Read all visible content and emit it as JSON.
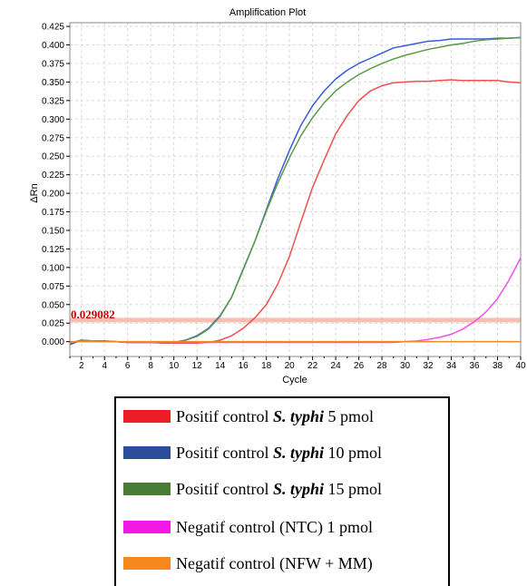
{
  "chart_data": {
    "type": "line",
    "title": "Amplification Plot",
    "xlabel": "Cycle",
    "ylabel": "ΔRn",
    "xlim": [
      1,
      40
    ],
    "ylim": [
      -0.02,
      0.43
    ],
    "x_ticks": [
      2,
      4,
      6,
      8,
      10,
      12,
      14,
      16,
      18,
      20,
      22,
      24,
      26,
      28,
      30,
      32,
      34,
      36,
      38,
      40
    ],
    "y_ticks": [
      "0.000",
      "0.025",
      "0.050",
      "0.075",
      "0.100",
      "0.125",
      "0.150",
      "0.175",
      "0.200",
      "0.225",
      "0.250",
      "0.275",
      "0.300",
      "0.325",
      "0.350",
      "0.375",
      "0.400",
      "0.425"
    ],
    "grid": true,
    "threshold": {
      "value": 0.029082,
      "label": "0.029082",
      "color": "#f4b4a4"
    },
    "x": [
      1,
      2,
      3,
      4,
      5,
      6,
      7,
      8,
      9,
      10,
      11,
      12,
      13,
      14,
      15,
      16,
      17,
      18,
      19,
      20,
      21,
      22,
      23,
      24,
      25,
      26,
      27,
      28,
      29,
      30,
      31,
      32,
      33,
      34,
      35,
      36,
      37,
      38,
      39,
      40
    ],
    "series": [
      {
        "name": "Positif control S. typhi 5 pmol",
        "color": "#f05050",
        "values": [
          -0.002,
          0.002,
          0.001,
          0.0,
          0.0,
          -0.001,
          -0.001,
          -0.001,
          -0.002,
          -0.002,
          -0.002,
          -0.002,
          -0.001,
          0.002,
          0.008,
          0.018,
          0.032,
          0.05,
          0.078,
          0.115,
          0.162,
          0.208,
          0.245,
          0.28,
          0.305,
          0.325,
          0.338,
          0.345,
          0.349,
          0.35,
          0.351,
          0.351,
          0.352,
          0.353,
          0.352,
          0.352,
          0.352,
          0.352,
          0.35,
          0.349
        ]
      },
      {
        "name": "Positif control S. typhi 10 pmol",
        "color": "#3a5bd8",
        "values": [
          -0.004,
          0.002,
          0.001,
          0.001,
          0.0,
          -0.001,
          -0.001,
          -0.001,
          -0.001,
          -0.001,
          0.002,
          0.008,
          0.018,
          0.035,
          0.06,
          0.098,
          0.135,
          0.178,
          0.22,
          0.258,
          0.292,
          0.318,
          0.338,
          0.354,
          0.366,
          0.375,
          0.382,
          0.389,
          0.396,
          0.399,
          0.402,
          0.405,
          0.406,
          0.408,
          0.408,
          0.408,
          0.408,
          0.409,
          0.409,
          0.41
        ]
      },
      {
        "name": "Positif control S. typhi 15 pmol",
        "color": "#5a9a48",
        "values": [
          -0.002,
          0.002,
          0.001,
          0.001,
          0.0,
          -0.001,
          -0.001,
          -0.001,
          -0.001,
          -0.001,
          0.002,
          0.007,
          0.017,
          0.034,
          0.06,
          0.097,
          0.135,
          0.176,
          0.214,
          0.248,
          0.278,
          0.302,
          0.322,
          0.338,
          0.35,
          0.36,
          0.368,
          0.375,
          0.381,
          0.386,
          0.39,
          0.394,
          0.397,
          0.4,
          0.402,
          0.405,
          0.407,
          0.408,
          0.409,
          0.41
        ]
      },
      {
        "name": "Negatif control (NTC) 1 pmol",
        "color": "#f050e8",
        "values": [
          -0.001,
          0.001,
          0.001,
          0.0,
          0.0,
          -0.001,
          -0.001,
          -0.001,
          -0.001,
          -0.001,
          -0.001,
          -0.001,
          -0.001,
          -0.001,
          -0.001,
          -0.001,
          -0.001,
          -0.001,
          -0.001,
          -0.001,
          -0.001,
          -0.001,
          -0.001,
          -0.001,
          -0.001,
          -0.001,
          -0.001,
          -0.001,
          -0.001,
          0.0,
          0.001,
          0.003,
          0.006,
          0.01,
          0.017,
          0.027,
          0.04,
          0.058,
          0.083,
          0.113
        ]
      },
      {
        "name": "Negatif control (NFW + MM)",
        "color": "#f08a20",
        "values": [
          0.0,
          0.0,
          0.0,
          0.0,
          0.0,
          0.0,
          0.0,
          0.0,
          0.0,
          0.0,
          0.0,
          0.0,
          0.0,
          0.0,
          0.0,
          0.0,
          0.0,
          0.0,
          0.0,
          0.0,
          0.0,
          0.0,
          0.0,
          0.0,
          0.0,
          0.0,
          0.0,
          0.0,
          0.0,
          0.0,
          0.0,
          0.0,
          0.0,
          0.0,
          0.0,
          0.0,
          0.0,
          0.0,
          0.0,
          0.0
        ]
      }
    ]
  },
  "legend": {
    "items": [
      {
        "prefix": "Positif control ",
        "italic": "S. typhi",
        "suffix": " 5 pmol",
        "color": "#ee1c24"
      },
      {
        "prefix": "Positif control ",
        "italic": "S. typhi",
        "suffix": " 10 pmol",
        "color": "#2b4d9c"
      },
      {
        "prefix": "Positif control ",
        "italic": "S. typhi",
        "suffix": " 15 pmol",
        "color": "#4a7c36"
      },
      {
        "prefix": "Negatif control (NTC) 1 pmol",
        "italic": "",
        "suffix": "",
        "color": "#f019e6"
      },
      {
        "prefix": "Negatif control (NFW + MM)",
        "italic": "",
        "suffix": "",
        "color": "#f5891e"
      }
    ]
  }
}
